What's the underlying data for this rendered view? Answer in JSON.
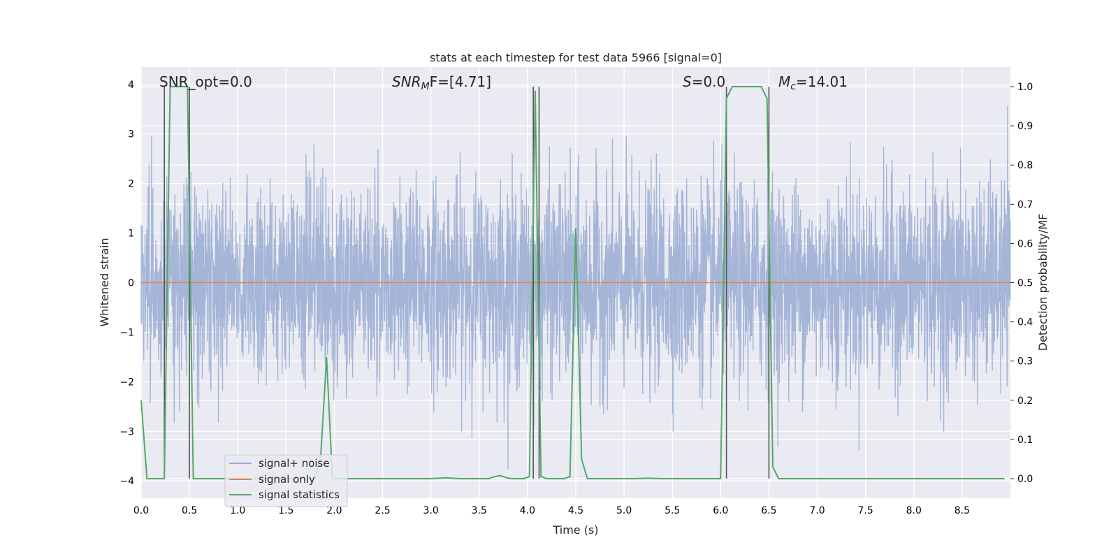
{
  "chart_data": {
    "type": "line",
    "title": "stats at each timestep for test data 5966 [signal=0]",
    "xlabel": "Time (s)",
    "ylabel_left": "Whitened strain",
    "ylabel_right": "Detection probability/MF",
    "xlim": [
      0.0,
      9.0
    ],
    "ylim_left": [
      -4.35,
      4.35
    ],
    "ylim_right": [
      -0.05,
      1.05
    ],
    "x_ticks": [
      0.0,
      0.5,
      1.0,
      1.5,
      2.0,
      2.5,
      3.0,
      3.5,
      4.0,
      4.5,
      5.0,
      5.5,
      6.0,
      6.5,
      7.0,
      7.5,
      8.0,
      8.5
    ],
    "x_tick_labels": [
      "0.0",
      "0.5",
      "1.0",
      "1.5",
      "2.0",
      "2.5",
      "3.0",
      "3.5",
      "4.0",
      "4.5",
      "5.0",
      "5.5",
      "6.0",
      "6.5",
      "7.0",
      "7.5",
      "8.0",
      "8.5"
    ],
    "y_left_ticks": [
      -4,
      -3,
      -2,
      -1,
      0,
      1,
      2,
      3,
      4
    ],
    "y_left_tick_labels": [
      "−4",
      "−3",
      "−2",
      "−1",
      "0",
      "1",
      "2",
      "3",
      "4"
    ],
    "y_right_ticks": [
      0.0,
      0.1,
      0.2,
      0.3,
      0.4,
      0.5,
      0.6,
      0.7,
      0.8,
      0.9,
      1.0
    ],
    "y_right_tick_labels": [
      "0.0",
      "0.1",
      "0.2",
      "0.3",
      "0.4",
      "0.5",
      "0.6",
      "0.7",
      "0.8",
      "0.9",
      "1.0"
    ],
    "grid": true,
    "legend_position": "lower-left",
    "annotations": [
      {
        "text": "SNR_opt=0.0",
        "x": 0.2,
        "y": 4.1
      },
      {
        "text_math": "SNR",
        "text_sub": "M",
        "text_rest": "F=[4.71]",
        "x": 2.6,
        "y": 4.1
      },
      {
        "text_math": "S",
        "text_sub": "",
        "text_rest": "=0.0",
        "x": 5.6,
        "y": 4.1
      },
      {
        "text_math": "M",
        "text_sub": "c",
        "text_rest": "=14.01",
        "x": 6.6,
        "y": 4.1
      }
    ],
    "series": [
      {
        "name": "signal+ noise",
        "axis": "left",
        "color": "#99abd2",
        "note_type": "noise",
        "sigma": 1.0,
        "samples_per_second": 400
      },
      {
        "name": "signal only",
        "axis": "left",
        "color": "#dd8452",
        "x": [
          0.0,
          9.0
        ],
        "y": [
          0.0,
          0.0
        ]
      },
      {
        "name": "signal statistics",
        "axis": "right",
        "color": "#55a868",
        "x": [
          0.0,
          0.06,
          0.12,
          0.18,
          0.24,
          0.3,
          0.36,
          0.42,
          0.48,
          0.54,
          0.6,
          0.66,
          0.72,
          0.78,
          0.84,
          0.9,
          0.96,
          1.02,
          1.08,
          1.14,
          1.2,
          1.26,
          1.32,
          1.38,
          1.44,
          1.5,
          1.56,
          1.62,
          1.68,
          1.74,
          1.8,
          1.86,
          1.92,
          1.98,
          2.04,
          2.1,
          2.4,
          2.7,
          3.0,
          3.15,
          3.3,
          3.6,
          3.66,
          3.72,
          3.78,
          3.84,
          3.9,
          3.96,
          4.02,
          4.08,
          4.14,
          4.2,
          4.26,
          4.32,
          4.38,
          4.44,
          4.5,
          4.56,
          4.62,
          4.68,
          4.8,
          5.1,
          5.25,
          5.4,
          5.7,
          6.0,
          6.06,
          6.12,
          6.18,
          6.24,
          6.3,
          6.36,
          6.42,
          6.48,
          6.54,
          6.6,
          6.66,
          6.72,
          7.0,
          7.5,
          8.0,
          8.5,
          8.94
        ],
        "y": [
          0.2,
          0.0,
          0.0,
          0.0,
          0.0,
          1.0,
          1.0,
          1.0,
          1.0,
          0.0,
          0.0,
          0.0,
          0.0,
          0.0,
          0.0,
          0.0,
          0.0,
          0.0,
          0.0,
          0.0,
          0.0,
          0.0,
          0.0,
          0.0,
          0.0,
          0.0,
          0.0,
          0.0,
          0.0,
          0.0,
          0.0,
          0.06,
          0.31,
          0.0,
          0.0,
          0.0,
          0.0,
          0.0,
          0.0,
          0.002,
          0.0,
          0.0,
          0.005,
          0.008,
          0.002,
          0.0,
          0.0,
          0.0,
          0.005,
          0.99,
          0.005,
          0.0,
          0.0,
          0.0,
          0.0,
          0.005,
          0.64,
          0.05,
          0.0,
          0.0,
          0.0,
          0.0,
          0.001,
          0.0,
          0.0,
          0.0,
          0.97,
          1.0,
          1.0,
          1.0,
          1.0,
          1.0,
          1.0,
          0.97,
          0.03,
          0.0,
          0.0,
          0.0,
          0.0,
          0.0,
          0.0,
          0.0,
          0.0
        ]
      }
    ],
    "vertical_markers": [
      0.24,
      0.5,
      4.06,
      4.12,
      6.06,
      6.5
    ],
    "vertical_marker_color": "#555555"
  }
}
